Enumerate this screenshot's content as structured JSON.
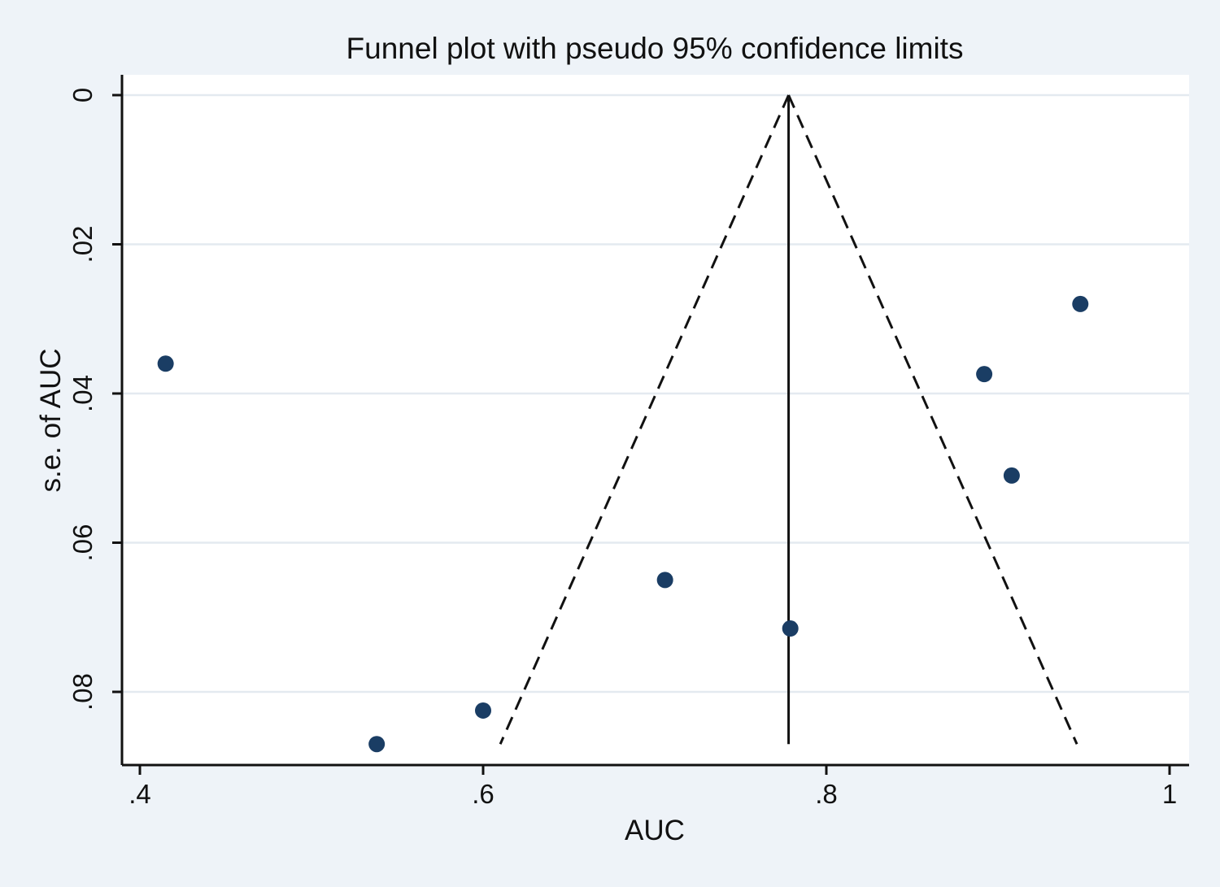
{
  "chart_data": {
    "type": "scatter",
    "title": "Funnel plot with pseudo 95% confidence limits",
    "xlabel": "AUC",
    "ylabel": "s.e. of AUC",
    "xlim": [
      0.39,
      1.01
    ],
    "ylim": [
      0,
      0.0895
    ],
    "y_reversed": true,
    "grid": "horizontal",
    "x_ticks": [
      {
        "value": 0.4,
        "label": ".4"
      },
      {
        "value": 0.6,
        "label": ".6"
      },
      {
        "value": 0.8,
        "label": ".8"
      },
      {
        "value": 1.0,
        "label": "1"
      }
    ],
    "y_ticks": [
      {
        "value": 0,
        "label": "0"
      },
      {
        "value": 0.02,
        "label": ".02"
      },
      {
        "value": 0.04,
        "label": ".04"
      },
      {
        "value": 0.06,
        "label": ".06"
      },
      {
        "value": 0.08,
        "label": ".08"
      }
    ],
    "pooled_estimate": 0.778,
    "funnel": {
      "apex": [
        0.778,
        0
      ],
      "lower_left": [
        0.61,
        0.087
      ],
      "lower_right": [
        0.946,
        0.087
      ],
      "line_end_se": 0.087
    },
    "points": [
      {
        "x": 0.415,
        "y": 0.036
      },
      {
        "x": 0.538,
        "y": 0.087
      },
      {
        "x": 0.6,
        "y": 0.0825
      },
      {
        "x": 0.706,
        "y": 0.065
      },
      {
        "x": 0.779,
        "y": 0.0715
      },
      {
        "x": 0.892,
        "y": 0.0374
      },
      {
        "x": 0.908,
        "y": 0.051
      },
      {
        "x": 0.948,
        "y": 0.028
      }
    ],
    "colors": {
      "marker": "#1a3d64",
      "background": "#eef3f8",
      "plot_area": "#ffffff",
      "grid": "#e4eaf0",
      "axis": "#111111"
    }
  }
}
